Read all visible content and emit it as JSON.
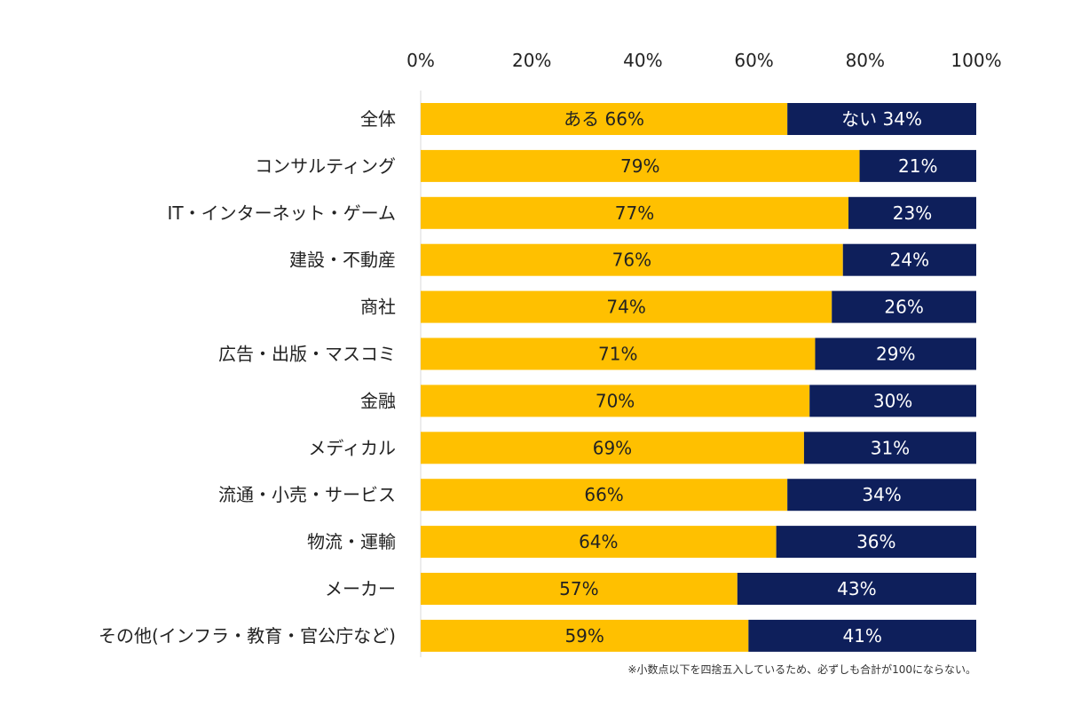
{
  "chart_data": {
    "type": "bar",
    "orientation": "horizontal",
    "stacked": true,
    "percent_stacked": true,
    "categories": [
      "全体",
      "コンサルティング",
      "IT・インターネット・ゲーム",
      "建設・不動産",
      "商社",
      "広告・出版・マスコミ",
      "金融",
      "メディカル",
      "流通・小売・サービス",
      "物流・運輸",
      "メーカー",
      "その他(インフラ・教育・官公庁など)"
    ],
    "series": [
      {
        "values": [
          66,
          79,
          77,
          76,
          74,
          71,
          70,
          69,
          66,
          64,
          57,
          59
        ],
        "labels": [
          "ある 66%",
          "79%",
          "77%",
          "76%",
          "74%",
          "71%",
          "70%",
          "69%",
          "66%",
          "64%",
          "57%",
          "59%"
        ],
        "color": "#FFC000"
      },
      {
        "values": [
          34,
          21,
          23,
          24,
          26,
          29,
          30,
          31,
          34,
          36,
          43,
          41
        ],
        "labels": [
          "ない 34%",
          "21%",
          "23%",
          "24%",
          "26%",
          "29%",
          "30%",
          "31%",
          "34%",
          "36%",
          "43%",
          "41%"
        ],
        "color": "#0E1F5B"
      }
    ],
    "xticks": [
      "0%",
      "20%",
      "40%",
      "60%",
      "80%",
      "100%"
    ],
    "xlim": [
      0,
      100
    ],
    "axis_position": "top",
    "grid": false,
    "legend": "none",
    "footnote": "※小数点以下を四捨五入しているため、必ずしも合計が100にならない。"
  }
}
